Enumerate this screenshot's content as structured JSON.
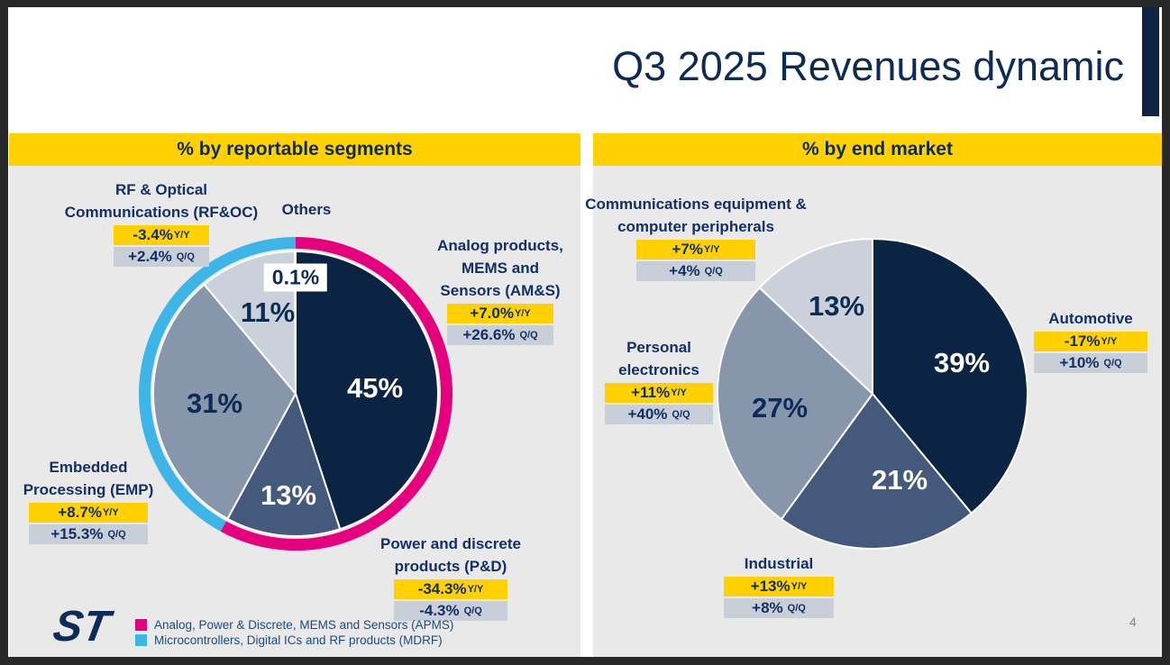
{
  "page": {
    "title": "Q3 2025 Revenues dynamic",
    "page_number": "4",
    "logo": "st-logo"
  },
  "colors": {
    "accent_yellow": "#ffd100",
    "navy": "#0d2b57",
    "panel_gray": "#e9e9ea",
    "badge_gray": "#c9cfd8",
    "apms_magenta": "#e6007e",
    "mdrf_cyan": "#3db5e6"
  },
  "badge_labels": {
    "yy": "Y/Y",
    "qq": "Q/Q"
  },
  "legend": [
    {
      "label": "Analog, Power & Discrete, MEMS and Sensors (APMS)",
      "color": "#e6007e"
    },
    {
      "label": "Microcontrollers, Digital ICs and RF products (MDRF)",
      "color": "#3db5e6"
    }
  ],
  "chart_data": [
    {
      "type": "pie",
      "title": "% by reportable segments",
      "segments": [
        {
          "name": "Analog products, MEMS and Sensors (AM&S)",
          "callout_lines": [
            "Analog products,",
            "MEMS and",
            "Sensors (AM&S)"
          ],
          "value": 45,
          "display": "45%",
          "yy": "+7.0%",
          "qq": "+26.6%",
          "color": "#0b2443"
        },
        {
          "name": "Power and discrete products (P&D)",
          "callout_lines": [
            "Power and discrete",
            "products (P&D)"
          ],
          "value": 13,
          "display": "13%",
          "yy": "-34.3%",
          "qq": "-4.3%",
          "color": "#45597d"
        },
        {
          "name": "Embedded Processing (EMP)",
          "callout_lines": [
            "Embedded",
            "Processing (EMP)"
          ],
          "value": 31,
          "display": "31%",
          "yy": "+8.7%",
          "qq": "+15.3%",
          "color": "#8896ab"
        },
        {
          "name": "RF & Optical Communications (RF&OC)",
          "callout_lines": [
            "RF & Optical",
            "Communications (RF&OC)"
          ],
          "value": 11,
          "display": "11%",
          "yy": "-3.4%",
          "qq": "+2.4%",
          "color": "#cad1da"
        },
        {
          "name": "Others",
          "callout_lines": [
            "Others"
          ],
          "value": 0.1,
          "display": "0.1%",
          "color": "#ffffff"
        }
      ],
      "ring": [
        {
          "name": "APMS",
          "from": 0,
          "to": 58.0,
          "color": "#e6007e"
        },
        {
          "name": "MDRF",
          "from": 58.0,
          "to": 100.1,
          "color": "#3db5e6"
        }
      ]
    },
    {
      "type": "pie",
      "title": "% by end market",
      "segments": [
        {
          "name": "Automotive",
          "callout_lines": [
            "Automotive"
          ],
          "value": 39,
          "display": "39%",
          "yy": "-17%",
          "qq": "+10%",
          "color": "#0b2443"
        },
        {
          "name": "Industrial",
          "callout_lines": [
            "Industrial"
          ],
          "value": 21,
          "display": "21%",
          "yy": "+13%",
          "qq": "+8%",
          "color": "#45597d"
        },
        {
          "name": "Personal electronics",
          "callout_lines": [
            "Personal",
            "electronics"
          ],
          "value": 27,
          "display": "27%",
          "yy": "+11%",
          "qq": "+40%",
          "color": "#8896ab"
        },
        {
          "name": "Communications equipment & computer peripherals",
          "callout_lines": [
            "Communications equipment &",
            "computer peripherals"
          ],
          "value": 13,
          "display": "13%",
          "yy": "+7%",
          "qq": "+4%",
          "color": "#cad1da"
        }
      ]
    }
  ]
}
